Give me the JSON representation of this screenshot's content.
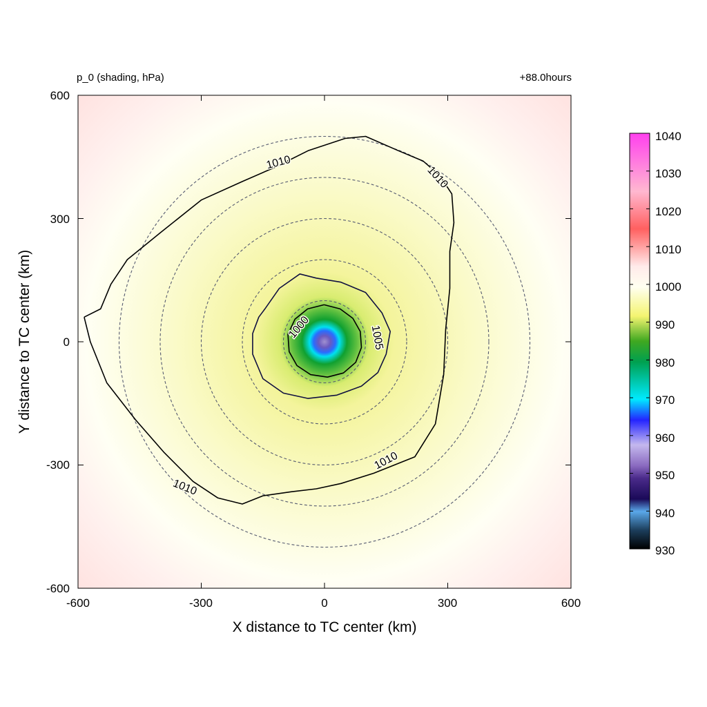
{
  "chart_data": {
    "type": "contour",
    "title_left": "p_0 (shading, hPa)",
    "title_right": "+88.0hours",
    "xlabel": "X distance to TC center (km)",
    "ylabel": "Y distance to TC center (km)",
    "xlim": [
      -600,
      600
    ],
    "ylim": [
      -600,
      600
    ],
    "xticks": [
      "-600",
      "-300",
      "0",
      "300",
      "600"
    ],
    "yticks": [
      "600",
      "300",
      "0",
      "-300",
      "-600"
    ],
    "center_pressure_hpa": 958,
    "colorbar": {
      "min": 930,
      "max": 1040,
      "tick_labels": [
        "1040",
        "1030",
        "1020",
        "1010",
        "1000",
        "990",
        "980",
        "970",
        "960",
        "950",
        "940",
        "930"
      ],
      "colors": [
        "#000000",
        "#1c3e5c",
        "#5aa8ea",
        "#3a1a78",
        "#5a3a98",
        "#9a82cc",
        "#c4b8ee",
        "#2424ff",
        "#00eaff",
        "#00b060",
        "#109010",
        "#a0d040",
        "#ffff80",
        "#ffffe8",
        "#ffffff",
        "#ffe0e0",
        "#ff9a9a",
        "#ff5a5a",
        "#ffb4d8",
        "#ff4eea"
      ]
    },
    "range_rings_km": [
      100,
      200,
      300,
      400,
      500
    ],
    "contours": [
      {
        "level": 1000,
        "label": "1000",
        "points": [
          [
            -1,
            90
          ],
          [
            -41,
            80
          ],
          [
            -72,
            55
          ],
          [
            -89,
            18
          ],
          [
            -86,
            -24
          ],
          [
            -67,
            -58
          ],
          [
            -34,
            -80
          ],
          [
            7,
            -86
          ],
          [
            46,
            -76
          ],
          [
            76,
            -50
          ],
          [
            90,
            -14
          ],
          [
            87,
            25
          ],
          [
            69,
            57
          ],
          [
            38,
            80
          ],
          [
            -1,
            90
          ]
        ]
      },
      {
        "level": 1005,
        "label": "1005",
        "points": [
          [
            -145,
            80
          ],
          [
            -110,
            130
          ],
          [
            -60,
            165
          ],
          [
            -20,
            155
          ],
          [
            40,
            145
          ],
          [
            100,
            120
          ],
          [
            140,
            70
          ],
          [
            160,
            25
          ],
          [
            150,
            -30
          ],
          [
            130,
            -75
          ],
          [
            90,
            -108
          ],
          [
            30,
            -130
          ],
          [
            -40,
            -138
          ],
          [
            -100,
            -125
          ],
          [
            -150,
            -90
          ],
          [
            -175,
            -30
          ],
          [
            -175,
            20
          ],
          [
            -160,
            60
          ],
          [
            -145,
            80
          ]
        ]
      },
      {
        "level": 1010,
        "label": "1010",
        "points": [
          [
            -585,
            60
          ],
          [
            -545,
            80
          ],
          [
            -520,
            140
          ],
          [
            -480,
            200
          ],
          [
            -400,
            265
          ],
          [
            -300,
            345
          ],
          [
            -200,
            390
          ],
          [
            -120,
            425
          ],
          [
            -40,
            465
          ],
          [
            50,
            495
          ],
          [
            100,
            500
          ],
          [
            180,
            465
          ],
          [
            240,
            440
          ],
          [
            280,
            405
          ],
          [
            310,
            360
          ],
          [
            315,
            290
          ],
          [
            305,
            220
          ],
          [
            305,
            130
          ],
          [
            295,
            30
          ],
          [
            290,
            -80
          ],
          [
            270,
            -200
          ],
          [
            220,
            -280
          ],
          [
            120,
            -320
          ],
          [
            40,
            -345
          ],
          [
            -20,
            -358
          ],
          [
            -80,
            -365
          ],
          [
            -150,
            -375
          ],
          [
            -200,
            -395
          ],
          [
            -260,
            -380
          ],
          [
            -320,
            -340
          ],
          [
            -390,
            -270
          ],
          [
            -460,
            -190
          ],
          [
            -530,
            -100
          ],
          [
            -570,
            0
          ],
          [
            -585,
            60
          ]
        ]
      }
    ],
    "contour_labels": [
      {
        "text": "1010",
        "x": -112,
        "y": 436,
        "angle": -15
      },
      {
        "text": "1010",
        "x": 275,
        "y": 400,
        "angle": 48
      },
      {
        "text": "1000",
        "x": -62,
        "y": 35,
        "angle": -50
      },
      {
        "text": "1005",
        "x": 128,
        "y": 10,
        "angle": 80
      },
      {
        "text": "1010",
        "x": 150,
        "y": -290,
        "angle": -28
      },
      {
        "text": "1010",
        "x": -340,
        "y": -355,
        "angle": 22
      }
    ]
  }
}
